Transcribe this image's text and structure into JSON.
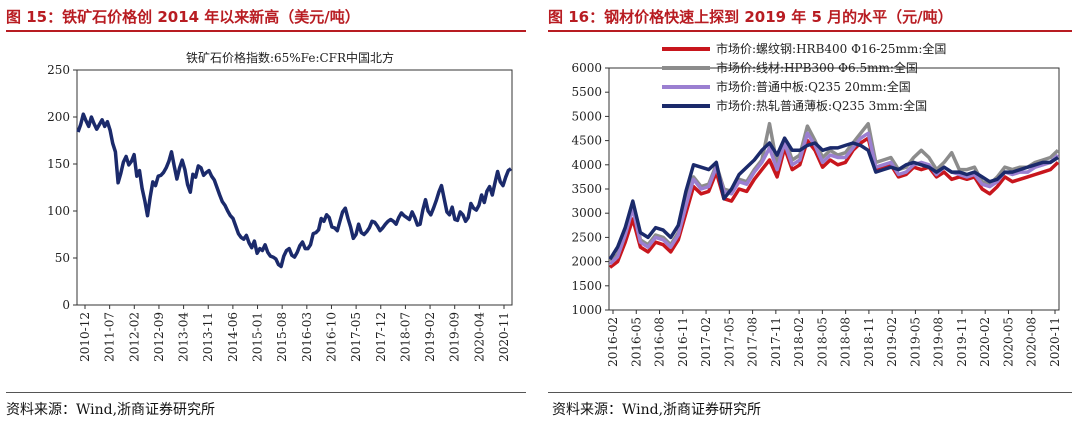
{
  "left_panel": {
    "figure_title": "图 15：铁矿石价格创 2014 年以来新高（美元/吨）",
    "source": "资料来源：Wind,浙商证券研究所"
  },
  "right_panel": {
    "figure_title": "图 16：钢材价格快速上探到 2019 年 5 月的水平（元/吨）",
    "source": "资料来源：Wind,浙商证券研究所"
  },
  "colors": {
    "accent": "#b81c22",
    "navy": "#1b2a6b",
    "red": "#c8161d",
    "gray": "#8c8c8c",
    "purple": "#9b7fd1"
  },
  "chart_data": [
    {
      "type": "line",
      "title": "铁矿石价格指数:65%Fe:CFR中国北方",
      "xlabel": "",
      "ylabel": "",
      "ylim": [
        0,
        250
      ],
      "yticks": [
        0,
        50,
        100,
        150,
        200,
        250
      ],
      "xticks": [
        "2010-12",
        "2011-07",
        "2012-02",
        "2012-09",
        "2013-04",
        "2013-11",
        "2014-06",
        "2015-01",
        "2015-08",
        "2016-03",
        "2016-10",
        "2017-05",
        "2017-12",
        "2018-07",
        "2019-02",
        "2019-09",
        "2020-04",
        "2020-11"
      ],
      "series": [
        {
          "name": "铁矿石价格指数:65%Fe:CFR中国北方",
          "color": "#1b2a6b",
          "values": [
            184,
            192,
            203,
            196,
            190,
            200,
            193,
            187,
            192,
            197,
            190,
            195,
            186,
            172,
            163,
            130,
            140,
            152,
            158,
            149,
            153,
            160,
            137,
            143,
            124,
            111,
            95,
            115,
            131,
            127,
            137,
            138,
            141,
            146,
            153,
            163,
            148,
            134,
            146,
            154,
            144,
            128,
            120,
            139,
            136,
            148,
            146,
            138,
            141,
            143,
            137,
            133,
            125,
            117,
            110,
            106,
            100,
            95,
            92,
            84,
            76,
            72,
            70,
            74,
            66,
            61,
            68,
            55,
            60,
            58,
            64,
            56,
            52,
            51,
            49,
            43,
            41,
            52,
            58,
            60,
            53,
            51,
            56,
            63,
            67,
            60,
            60,
            64,
            76,
            77,
            80,
            92,
            89,
            96,
            93,
            83,
            82,
            79,
            89,
            99,
            103,
            92,
            83,
            71,
            75,
            86,
            77,
            75,
            78,
            82,
            89,
            88,
            84,
            79,
            82,
            86,
            89,
            91,
            89,
            86,
            93,
            98,
            95,
            93,
            91,
            99,
            93,
            85,
            86,
            101,
            112,
            100,
            96,
            103,
            111,
            120,
            127,
            113,
            99,
            96,
            104,
            91,
            90,
            99,
            96,
            89,
            93,
            108,
            103,
            101,
            106,
            117,
            109,
            121,
            126,
            117,
            130,
            142,
            131,
            127,
            136,
            143,
            145
          ]
        }
      ]
    },
    {
      "type": "line",
      "title": "",
      "xlabel": "",
      "ylabel": "",
      "ylim": [
        1000,
        6000
      ],
      "yticks": [
        1000,
        1500,
        2000,
        2500,
        3000,
        3500,
        4000,
        4500,
        5000,
        5500,
        6000
      ],
      "xticks": [
        "2016-02",
        "2016-05",
        "2016-08",
        "2016-11",
        "2017-02",
        "2017-05",
        "2017-08",
        "2017-11",
        "2018-02",
        "2018-05",
        "2018-08",
        "2018-11",
        "2019-02",
        "2019-05",
        "2019-08",
        "2019-11",
        "2020-02",
        "2020-05",
        "2020-08",
        "2020-11"
      ],
      "legend_position": "top",
      "series": [
        {
          "name": "市场价:螺纹钢:HRB400 Φ16-25mm:全国",
          "color": "#c8161d",
          "values": [
            1880,
            2000,
            2400,
            2880,
            2300,
            2200,
            2400,
            2350,
            2200,
            2450,
            3000,
            3550,
            3400,
            3450,
            3850,
            3300,
            3250,
            3500,
            3450,
            3700,
            3900,
            4100,
            3750,
            4350,
            3900,
            4000,
            4500,
            4300,
            3950,
            4100,
            4000,
            4050,
            4300,
            4450,
            4550,
            3900,
            3950,
            4000,
            3750,
            3800,
            3950,
            3900,
            3950,
            3750,
            3850,
            3700,
            3750,
            3700,
            3750,
            3500,
            3400,
            3550,
            3750,
            3650,
            3700,
            3750,
            3800,
            3850,
            3900,
            4050
          ]
        },
        {
          "name": "市场价:线材:HPB300 Φ6.5mm:全国",
          "color": "#8c8c8c",
          "values": [
            2020,
            2150,
            2650,
            3200,
            2450,
            2350,
            2550,
            2500,
            2350,
            2600,
            3250,
            3750,
            3550,
            3600,
            4000,
            3500,
            3450,
            3700,
            3650,
            3900,
            4100,
            4850,
            4000,
            4550,
            4100,
            4200,
            4800,
            4500,
            4150,
            4300,
            4200,
            4250,
            4450,
            4650,
            4850,
            4050,
            4100,
            4150,
            3900,
            3950,
            4150,
            4300,
            4150,
            3900,
            4050,
            4250,
            3900,
            3900,
            3950,
            3650,
            3600,
            3750,
            3950,
            3900,
            3950,
            3950,
            4050,
            4100,
            4150,
            4300
          ]
        },
        {
          "name": "市场价:普通中板:Q235 20mm:全国",
          "color": "#9b7fd1",
          "values": [
            1950,
            2100,
            2550,
            3100,
            2400,
            2300,
            2500,
            2450,
            2300,
            2550,
            3150,
            3700,
            3500,
            3550,
            3950,
            3450,
            3400,
            3650,
            3600,
            3850,
            4050,
            4350,
            3900,
            4450,
            4000,
            4100,
            4650,
            4400,
            4050,
            4200,
            4150,
            4150,
            4350,
            4550,
            4650,
            3950,
            4000,
            4050,
            3800,
            3850,
            4000,
            4050,
            4000,
            3800,
            3950,
            3850,
            3800,
            3750,
            3800,
            3600,
            3550,
            3650,
            3850,
            3800,
            3850,
            3850,
            3950,
            4000,
            4050,
            4200
          ]
        },
        {
          "name": "市场价:热轧普通薄板:Q235 3mm:全国",
          "color": "#1b2a6b",
          "values": [
            2050,
            2300,
            2700,
            3250,
            2600,
            2500,
            2700,
            2650,
            2500,
            2750,
            3450,
            4000,
            3950,
            3900,
            4050,
            3300,
            3500,
            3800,
            3950,
            4100,
            4300,
            4450,
            4200,
            4550,
            4300,
            4300,
            4400,
            4450,
            4300,
            4350,
            4350,
            4400,
            4450,
            4400,
            4300,
            3850,
            3900,
            3950,
            3900,
            4000,
            4050,
            4000,
            3950,
            3850,
            3950,
            3850,
            3850,
            3800,
            3850,
            3750,
            3650,
            3700,
            3850,
            3850,
            3900,
            3950,
            4000,
            4050,
            4050,
            4150
          ]
        }
      ]
    }
  ]
}
